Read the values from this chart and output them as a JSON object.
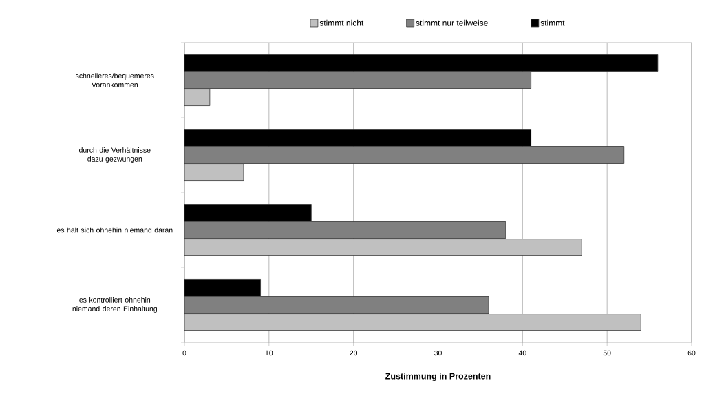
{
  "chart_data": {
    "type": "bar",
    "orientation": "horizontal",
    "xlabel": "Zustimmung in Prozenten",
    "categories": [
      "schnelleres/bequemeres Vorankommen",
      "durch die Verhältnisse dazu gezwungen",
      "es hält sich ohnehin niemand daran",
      "es kontrolliert ohnehin niemand deren Einhaltung"
    ],
    "series": [
      {
        "name": "stimmt nicht",
        "color": "#c0c0c0",
        "values": [
          3,
          7,
          47,
          54
        ]
      },
      {
        "name": "stimmt nur teilweise",
        "color": "#808080",
        "values": [
          41,
          52,
          38,
          36
        ]
      },
      {
        "name": "stimmt",
        "color": "#000000",
        "values": [
          56,
          41,
          15,
          9
        ]
      }
    ],
    "xlim": [
      0,
      60
    ],
    "xticks": [
      0,
      10,
      20,
      30,
      40,
      50,
      60
    ],
    "grid": "x",
    "legend": "top"
  }
}
